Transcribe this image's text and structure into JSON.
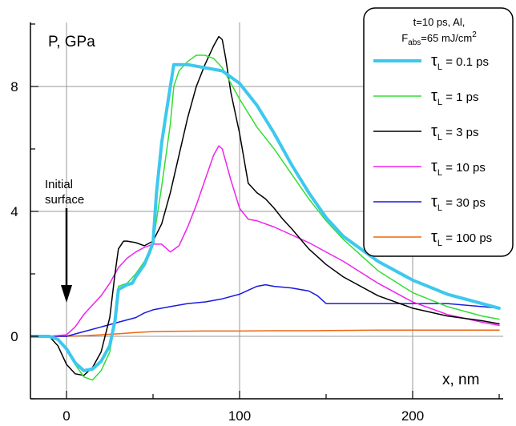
{
  "chart_data": {
    "type": "line",
    "ylabel": "P,  GPa",
    "xlabel": "x,  nm",
    "xlim": [
      -10,
      250
    ],
    "ylim": [
      -2,
      10
    ],
    "x_ticks": [
      0,
      100,
      200
    ],
    "y_ticks": [
      0,
      4,
      8
    ],
    "grid": true,
    "legend_position": "top-right",
    "legend_title": {
      "line1": "t=10 ps, Al,",
      "line2_prefix": "F",
      "line2_sub": "abs",
      "line2_rest": "=65 mJ/cm",
      "line2_sup": "2"
    },
    "annotation": {
      "line1": "Initial",
      "line2": "surface",
      "x": 0
    },
    "series": [
      {
        "name": "τL = 0.1 ps",
        "legend_symbol": "τ",
        "legend_sub": "L",
        "legend_rest": " = 0.1 ps",
        "color": "#3dc8ee",
        "width": 4,
        "x": [
          -20,
          -10,
          -5,
          0,
          5,
          10,
          15,
          20,
          25,
          28,
          30,
          35,
          38,
          40,
          45,
          48,
          50,
          52,
          55,
          58,
          60,
          62,
          65,
          70,
          80,
          90,
          100,
          110,
          120,
          130,
          140,
          150,
          160,
          180,
          200,
          220,
          240,
          250
        ],
        "y": [
          0,
          0,
          -0.1,
          -0.4,
          -0.85,
          -1.1,
          -1.05,
          -0.8,
          -0.3,
          0.5,
          1.5,
          1.65,
          1.7,
          1.9,
          2.3,
          2.7,
          3.0,
          4.6,
          6.2,
          7.3,
          8.0,
          8.7,
          8.7,
          8.7,
          8.6,
          8.5,
          8.1,
          7.4,
          6.5,
          5.5,
          4.6,
          3.8,
          3.2,
          2.4,
          1.8,
          1.35,
          1.05,
          0.9
        ]
      },
      {
        "name": "τL = 1 ps",
        "legend_symbol": "τ",
        "legend_sub": "L",
        "legend_rest": " = 1 ps",
        "color": "#33dd33",
        "width": 1.5,
        "x": [
          -20,
          -10,
          -5,
          0,
          5,
          10,
          15,
          20,
          25,
          28,
          30,
          35,
          40,
          45,
          50,
          55,
          60,
          62,
          65,
          70,
          75,
          80,
          85,
          90,
          95,
          100,
          110,
          120,
          130,
          140,
          150,
          160,
          180,
          200,
          220,
          240,
          250
        ],
        "y": [
          0,
          0,
          -0.1,
          -0.4,
          -0.9,
          -1.3,
          -1.4,
          -1.1,
          -0.5,
          0.5,
          1.6,
          1.7,
          2.0,
          2.4,
          3.0,
          4.8,
          6.8,
          8.0,
          8.5,
          8.8,
          9.0,
          9.0,
          8.9,
          8.6,
          8.1,
          7.6,
          6.7,
          6.0,
          5.2,
          4.4,
          3.7,
          3.1,
          2.1,
          1.4,
          0.95,
          0.65,
          0.55
        ]
      },
      {
        "name": "τL = 3 ps",
        "legend_symbol": "τ",
        "legend_sub": "L",
        "legend_rest": " = 3 ps",
        "color": "#000000",
        "width": 1.5,
        "x": [
          -20,
          -10,
          -5,
          0,
          5,
          10,
          15,
          20,
          25,
          28,
          30,
          33,
          35,
          40,
          45,
          50,
          55,
          60,
          65,
          70,
          75,
          80,
          85,
          88,
          90,
          92,
          95,
          100,
          105,
          110,
          115,
          120,
          125,
          130,
          140,
          150,
          160,
          180,
          200,
          220,
          240,
          250
        ],
        "y": [
          0,
          0,
          -0.3,
          -0.9,
          -1.2,
          -1.25,
          -1.0,
          -0.5,
          0.6,
          2.0,
          2.8,
          3.05,
          3.05,
          3.0,
          2.9,
          3.05,
          3.6,
          4.6,
          5.8,
          7.0,
          8.0,
          8.7,
          9.3,
          9.6,
          9.5,
          8.9,
          7.8,
          6.5,
          4.9,
          4.6,
          4.4,
          4.1,
          3.75,
          3.45,
          2.8,
          2.3,
          1.9,
          1.3,
          0.9,
          0.65,
          0.5,
          0.4
        ]
      },
      {
        "name": "τL = 10 ps",
        "legend_symbol": "τ",
        "legend_sub": "L",
        "legend_rest": " = 10 ps",
        "color": "#ee22ee",
        "width": 1.5,
        "x": [
          -20,
          -10,
          0,
          5,
          10,
          20,
          25,
          30,
          35,
          40,
          45,
          50,
          55,
          60,
          65,
          70,
          75,
          80,
          85,
          88,
          90,
          92,
          95,
          100,
          105,
          110,
          120,
          140,
          160,
          180,
          200,
          220,
          240,
          250
        ],
        "y": [
          0,
          0,
          0.05,
          0.3,
          0.7,
          1.3,
          1.7,
          2.2,
          2.5,
          2.7,
          2.85,
          2.95,
          2.95,
          2.7,
          2.9,
          3.5,
          4.2,
          5.0,
          5.8,
          6.1,
          6.0,
          5.6,
          5.0,
          4.1,
          3.75,
          3.7,
          3.5,
          3.0,
          2.4,
          1.7,
          1.1,
          0.7,
          0.45,
          0.35
        ]
      },
      {
        "name": "τL = 30 ps",
        "legend_symbol": "τ",
        "legend_sub": "L",
        "legend_rest": " = 30 ps",
        "color": "#1a1adc",
        "width": 1.5,
        "x": [
          -20,
          0,
          10,
          20,
          30,
          40,
          45,
          50,
          60,
          70,
          80,
          90,
          100,
          110,
          115,
          120,
          130,
          140,
          145,
          150,
          160,
          180,
          200,
          220,
          240,
          250
        ],
        "y": [
          0,
          0,
          0.15,
          0.3,
          0.45,
          0.6,
          0.75,
          0.85,
          0.95,
          1.05,
          1.1,
          1.2,
          1.35,
          1.6,
          1.65,
          1.6,
          1.55,
          1.45,
          1.3,
          1.05,
          1.05,
          1.05,
          1.05,
          1.05,
          0.95,
          0.9
        ]
      },
      {
        "name": "τL = 100 ps",
        "legend_symbol": "τ",
        "legend_sub": "L",
        "legend_rest": " = 100 ps",
        "color": "#ee6611",
        "width": 1.5,
        "x": [
          -20,
          0,
          10,
          20,
          30,
          40,
          50,
          60,
          80,
          100,
          120,
          140,
          160,
          180,
          200,
          220,
          240,
          250
        ],
        "y": [
          0,
          0,
          0.02,
          0.05,
          0.08,
          0.12,
          0.15,
          0.16,
          0.17,
          0.17,
          0.18,
          0.18,
          0.19,
          0.2,
          0.2,
          0.2,
          0.2,
          0.2
        ]
      }
    ]
  }
}
